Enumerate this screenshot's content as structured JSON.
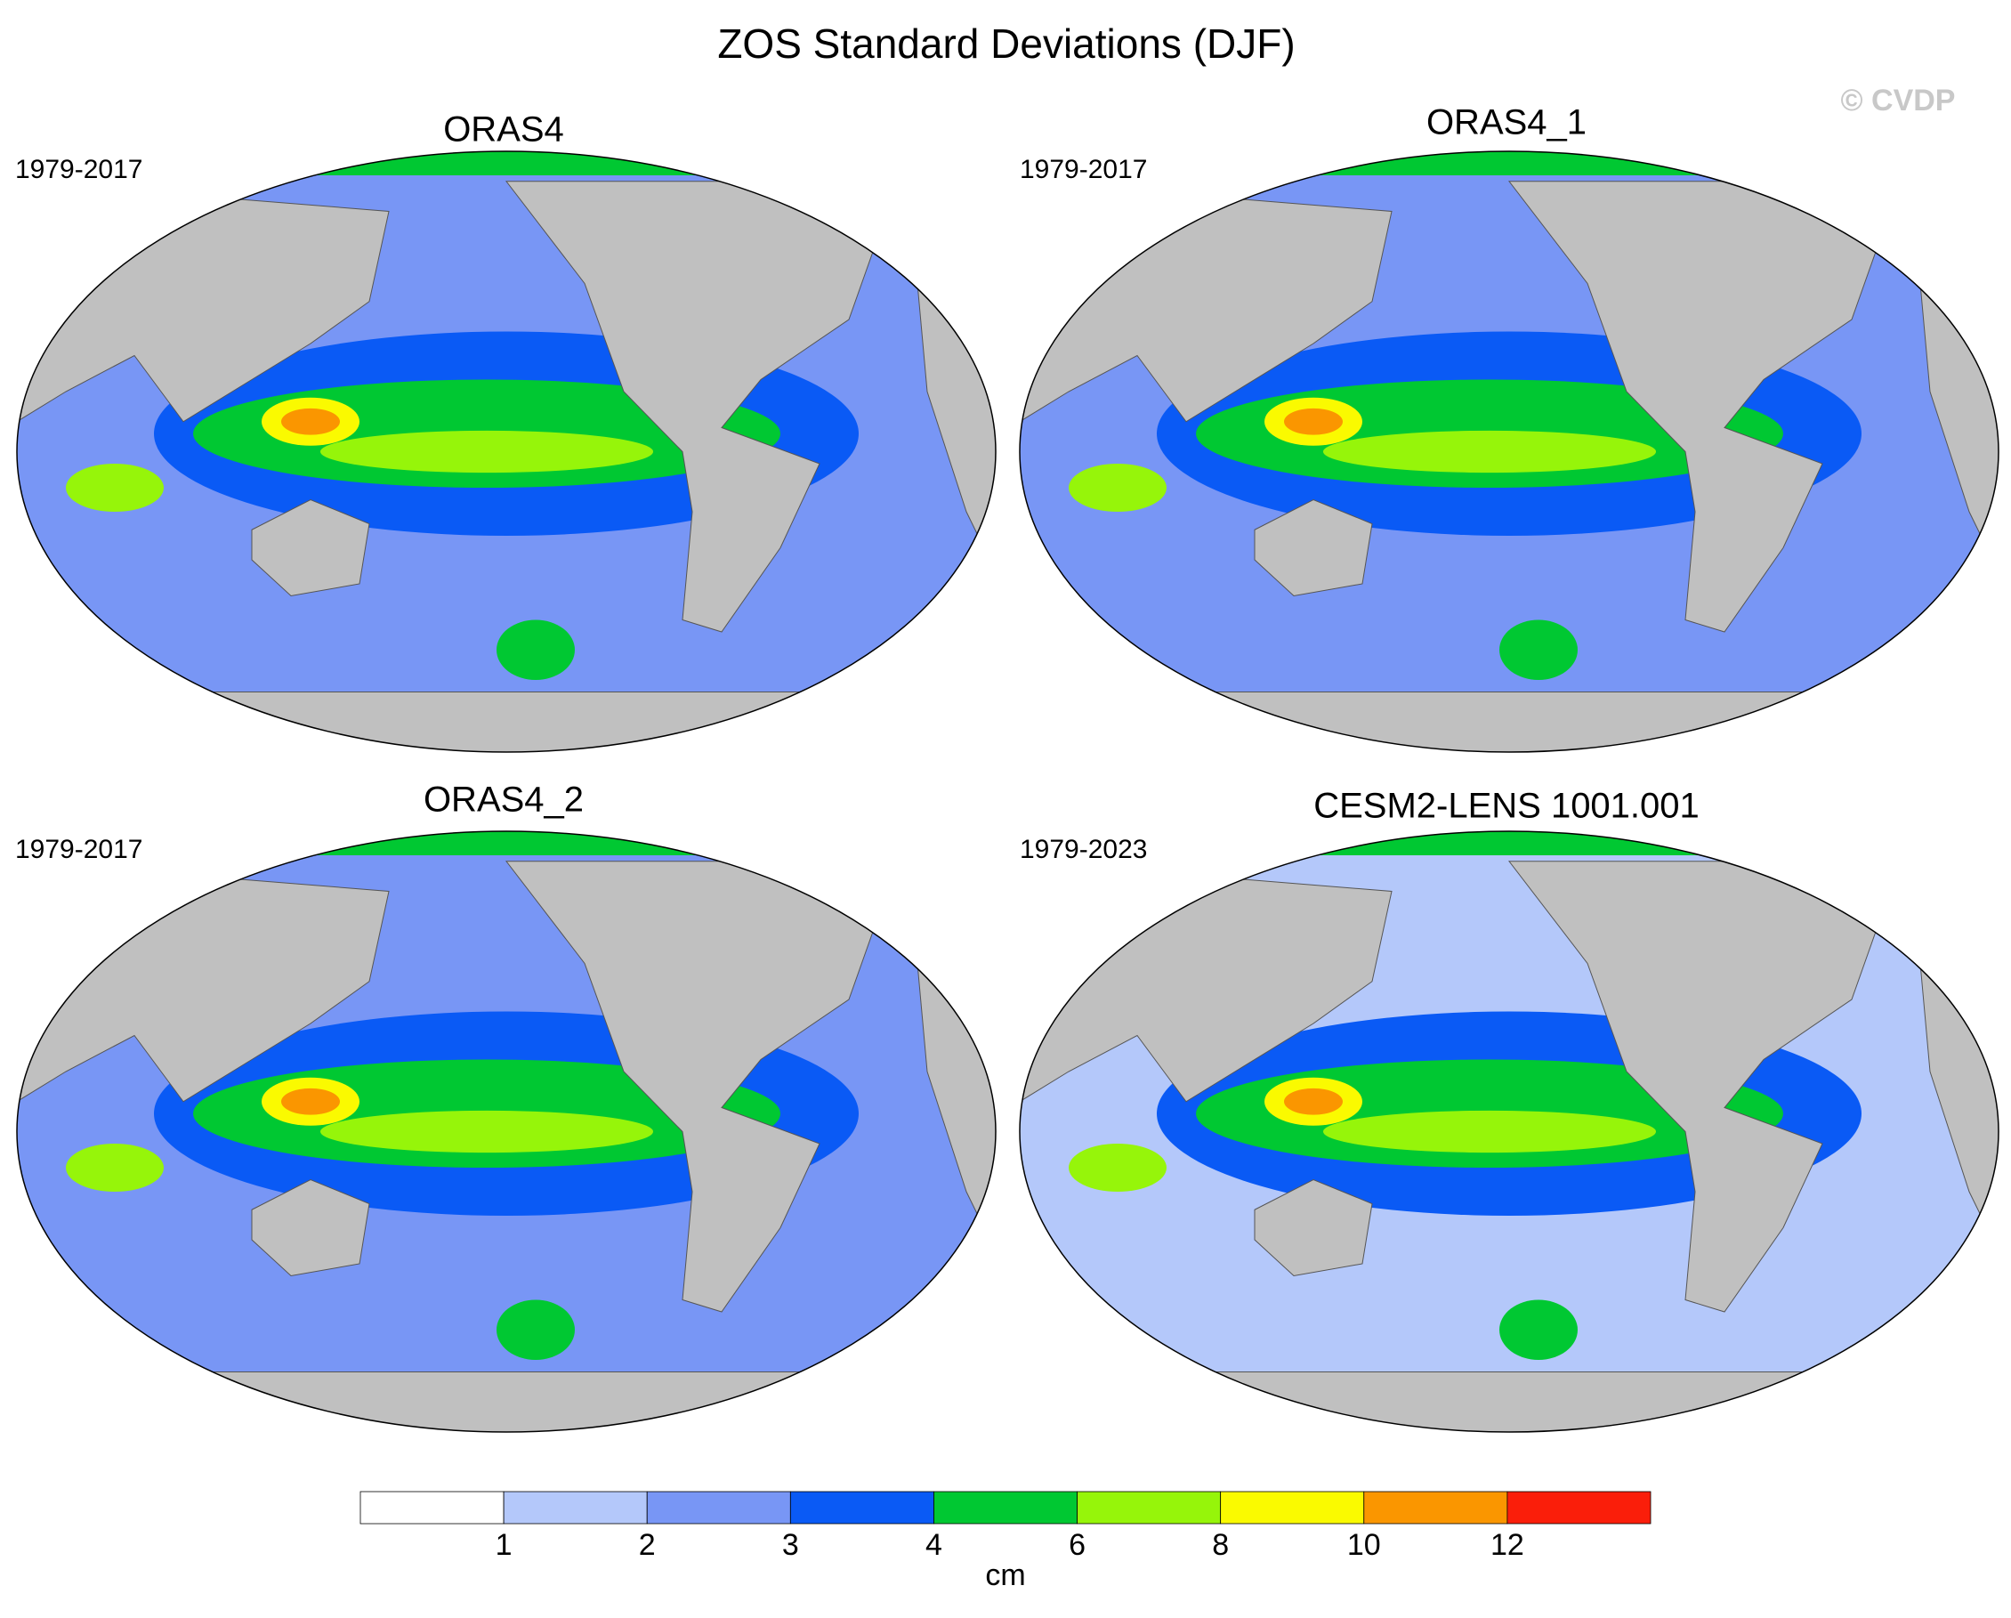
{
  "title": "ZOS Standard Deviations (DJF)",
  "watermark": "© CVDP",
  "panels": [
    {
      "title": "ORAS4",
      "period": "1979-2017"
    },
    {
      "title": "ORAS4_1",
      "period": "1979-2017"
    },
    {
      "title": "ORAS4_2",
      "period": "1979-2017"
    },
    {
      "title": "CESM2-LENS 1001.001",
      "period": "1979-2023"
    }
  ],
  "colorbar": {
    "colors": [
      "#ffffff",
      "#b4c8fa",
      "#7896f5",
      "#0a5af5",
      "#00c832",
      "#96f50a",
      "#fafa00",
      "#fa9600",
      "#fa1e0a"
    ],
    "ticks": [
      1,
      2,
      3,
      4,
      6,
      8,
      10,
      12
    ],
    "label": "cm"
  }
}
